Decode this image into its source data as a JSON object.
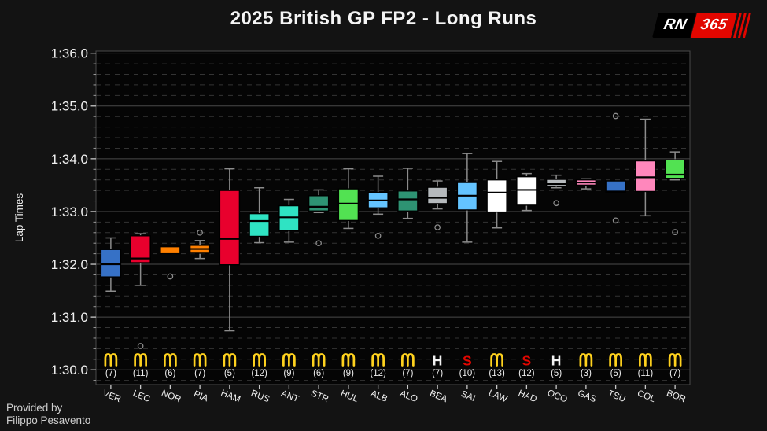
{
  "header": {
    "title": "2025 British GP FP2 - Long Runs"
  },
  "logo": {
    "rn": "RN",
    "num": "365",
    "red": "#e10600"
  },
  "credit": {
    "line1": "Provided by",
    "line2": "Filippo Pesavento"
  },
  "chart_data": {
    "type": "boxplot",
    "title": "2025 British GP FP2 - Long Runs",
    "ylabel": "Lap Times",
    "grid": "major-solid minor-dashed",
    "y_axis": {
      "tick_labels": [
        "1:36.0",
        "1:35.0",
        "1:34.0",
        "1:33.0",
        "1:32.0",
        "1:31.0",
        "1:30.0"
      ],
      "tick_values": [
        96,
        95,
        94,
        93,
        92,
        91,
        90
      ],
      "minor_step": 0.2,
      "ylim": [
        89.72,
        96.04
      ],
      "units": "minute:seconds lap time"
    },
    "tyre_colors": {
      "M": "#FFD21E",
      "H": "#F2F2F2",
      "S": "#E10600"
    },
    "series": [
      {
        "driver": "VER",
        "tyre": "M",
        "laps": 7,
        "laps_label": "(7)",
        "color": "#3671C6",
        "whisker_low": 91.49,
        "q1": 91.76,
        "median": 92.0,
        "q3": 92.28,
        "whisker_high": 92.5,
        "outliers": []
      },
      {
        "driver": "LEC",
        "tyre": "M",
        "laps": 11,
        "laps_label": "(11)",
        "color": "#E8002D",
        "whisker_low": 91.6,
        "q1": 92.03,
        "median": 92.11,
        "q3": 92.54,
        "whisker_high": 92.58,
        "outliers": [
          90.45
        ]
      },
      {
        "driver": "NOR",
        "tyre": "M",
        "laps": 6,
        "laps_label": "(6)",
        "color": "#FF8000",
        "whisker_low": 92.2,
        "q1": 92.2,
        "median": 92.34,
        "q3": 92.35,
        "whisker_high": 92.35,
        "outliers": [
          91.77
        ]
      },
      {
        "driver": "PIA",
        "tyre": "M",
        "laps": 7,
        "laps_label": "(7)",
        "color": "#FF8000",
        "whisker_low": 92.11,
        "q1": 92.21,
        "median": 92.29,
        "q3": 92.36,
        "whisker_high": 92.45,
        "outliers": [
          92.6
        ]
      },
      {
        "driver": "HAM",
        "tyre": "M",
        "laps": 5,
        "laps_label": "(5)",
        "color": "#E8002D",
        "whisker_low": 90.74,
        "q1": 91.99,
        "median": 92.48,
        "q3": 93.4,
        "whisker_high": 93.81,
        "outliers": []
      },
      {
        "driver": "RUS",
        "tyre": "M",
        "laps": 12,
        "laps_label": "(12)",
        "color": "#2FE3C3",
        "whisker_low": 92.41,
        "q1": 92.53,
        "median": 92.82,
        "q3": 92.96,
        "whisker_high": 93.45,
        "outliers": []
      },
      {
        "driver": "ANT",
        "tyre": "M",
        "laps": 9,
        "laps_label": "(9)",
        "color": "#2FE3C3",
        "whisker_low": 92.42,
        "q1": 92.64,
        "median": 92.89,
        "q3": 93.11,
        "whisker_high": 93.23,
        "outliers": []
      },
      {
        "driver": "STR",
        "tyre": "M",
        "laps": 6,
        "laps_label": "(6)",
        "color": "#2E9373",
        "whisker_low": 92.98,
        "q1": 93.01,
        "median": 93.09,
        "q3": 93.3,
        "whisker_high": 93.41,
        "outliers": [
          92.4
        ]
      },
      {
        "driver": "HUL",
        "tyre": "M",
        "laps": 9,
        "laps_label": "(9)",
        "color": "#52E252",
        "whisker_low": 92.68,
        "q1": 92.83,
        "median": 93.15,
        "q3": 93.43,
        "whisker_high": 93.81,
        "outliers": []
      },
      {
        "driver": "ALB",
        "tyre": "M",
        "laps": 12,
        "laps_label": "(12)",
        "color": "#64C4FF",
        "whisker_low": 92.95,
        "q1": 93.07,
        "median": 93.21,
        "q3": 93.36,
        "whisker_high": 93.67,
        "outliers": [
          92.54
        ]
      },
      {
        "driver": "ALO",
        "tyre": "M",
        "laps": 7,
        "laps_label": "(7)",
        "color": "#2E9373",
        "whisker_low": 92.87,
        "q1": 93.01,
        "median": 93.23,
        "q3": 93.39,
        "whisker_high": 93.82,
        "outliers": []
      },
      {
        "driver": "BEA",
        "tyre": "H",
        "laps": 7,
        "laps_label": "(7)",
        "color": "#B6BABD",
        "whisker_low": 93.05,
        "q1": 93.15,
        "median": 93.26,
        "q3": 93.46,
        "whisker_high": 93.58,
        "outliers": [
          92.7
        ]
      },
      {
        "driver": "SAI",
        "tyre": "S",
        "laps": 10,
        "laps_label": "(10)",
        "color": "#64C4FF",
        "whisker_low": 92.42,
        "q1": 93.03,
        "median": 93.3,
        "q3": 93.55,
        "whisker_high": 94.1,
        "outliers": []
      },
      {
        "driver": "LAW",
        "tyre": "M",
        "laps": 13,
        "laps_label": "(13)",
        "color": "#FFFFFF",
        "whisker_low": 92.69,
        "q1": 92.99,
        "median": 93.36,
        "q3": 93.6,
        "whisker_high": 93.95,
        "outliers": []
      },
      {
        "driver": "HAD",
        "tyre": "S",
        "laps": 12,
        "laps_label": "(12)",
        "color": "#FFFFFF",
        "whisker_low": 93.02,
        "q1": 93.12,
        "median": 93.41,
        "q3": 93.66,
        "whisker_high": 93.72,
        "outliers": []
      },
      {
        "driver": "OCO",
        "tyre": "H",
        "laps": 5,
        "laps_label": "(5)",
        "color": "#B6BABD",
        "whisker_low": 93.45,
        "q1": 93.48,
        "median": 93.52,
        "q3": 93.61,
        "whisker_high": 93.69,
        "outliers": [
          93.16
        ]
      },
      {
        "driver": "GAS",
        "tyre": "M",
        "laps": 3,
        "laps_label": "(3)",
        "color": "#FF87BC",
        "whisker_low": 93.43,
        "q1": 93.5,
        "median": 93.55,
        "q3": 93.6,
        "whisker_high": 93.62,
        "outliers": []
      },
      {
        "driver": "TSU",
        "tyre": "M",
        "laps": 5,
        "laps_label": "(5)",
        "color": "#3671C6",
        "whisker_low": 93.37,
        "q1": 93.37,
        "median": 93.38,
        "q3": 93.58,
        "whisker_high": 93.58,
        "outliers": [
          94.81,
          92.83
        ]
      },
      {
        "driver": "COL",
        "tyre": "M",
        "laps": 11,
        "laps_label": "(11)",
        "color": "#FF87BC",
        "whisker_low": 92.92,
        "q1": 93.38,
        "median": 93.65,
        "q3": 93.96,
        "whisker_high": 94.75,
        "outliers": []
      },
      {
        "driver": "BOR",
        "tyre": "M",
        "laps": 7,
        "laps_label": "(7)",
        "color": "#52E252",
        "whisker_low": 93.6,
        "q1": 93.63,
        "median": 93.7,
        "q3": 93.98,
        "whisker_high": 94.13,
        "outliers": [
          92.61
        ]
      }
    ]
  }
}
